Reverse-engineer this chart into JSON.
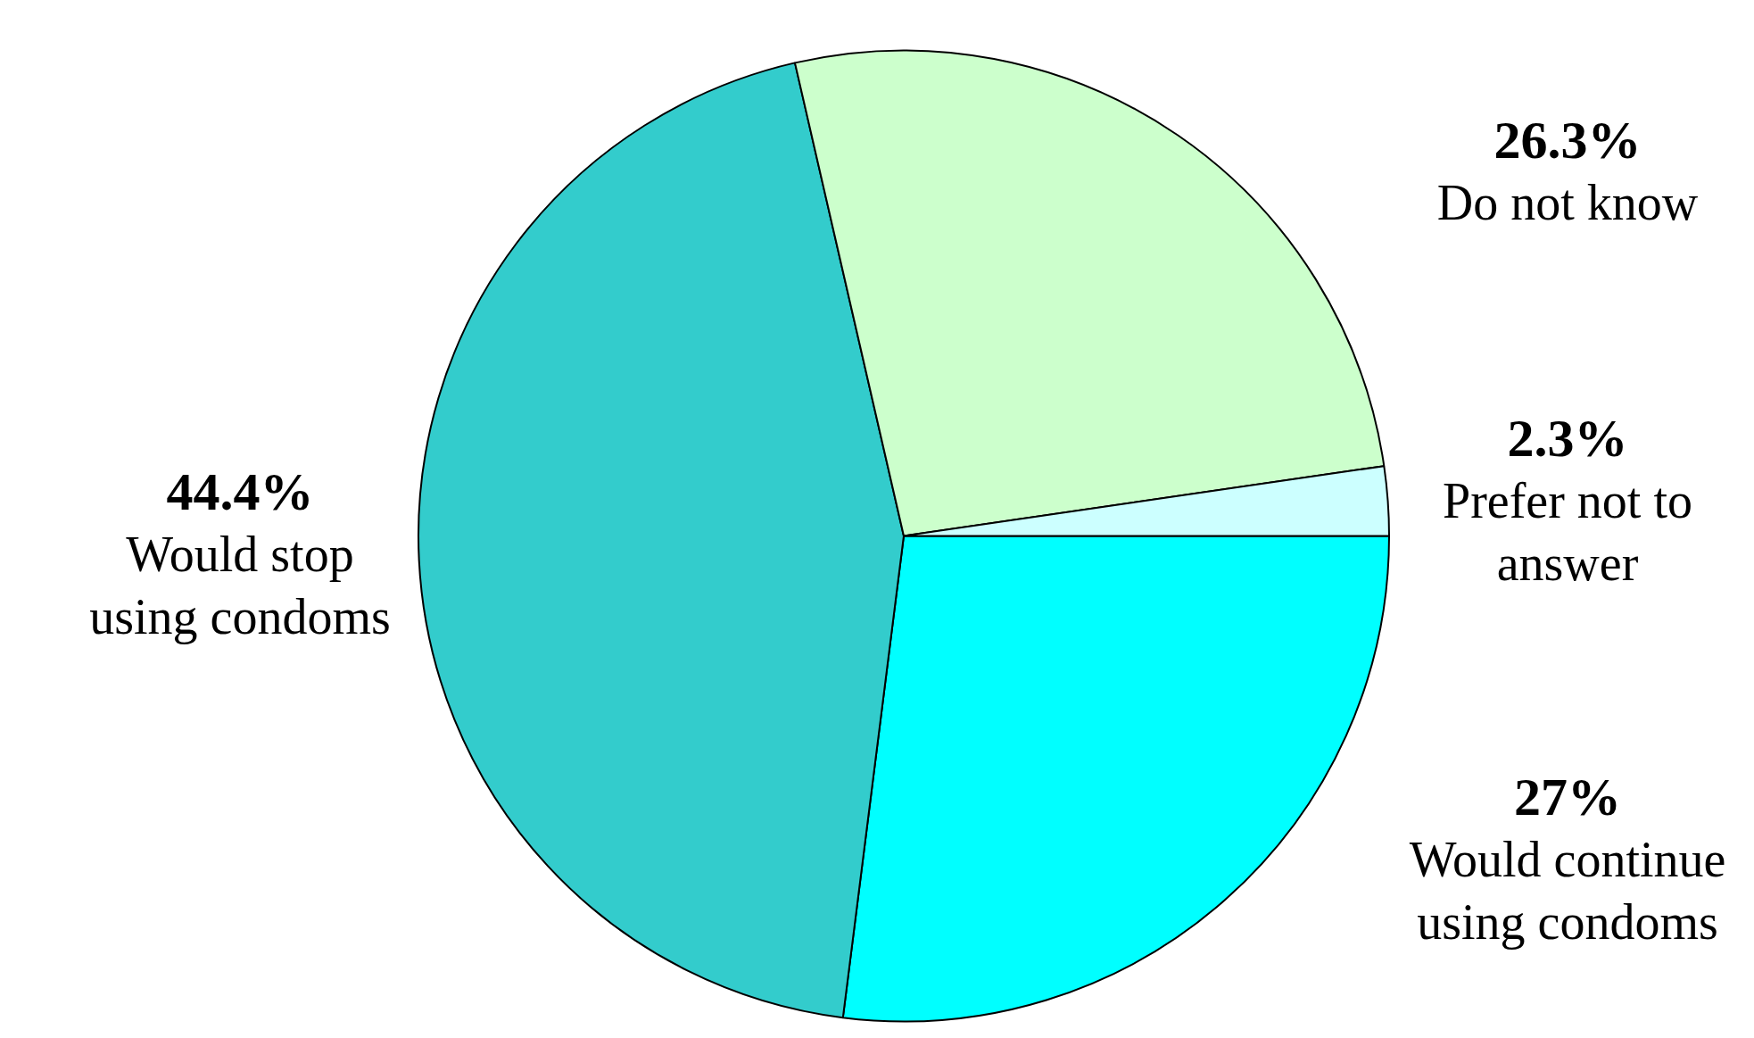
{
  "chart_data": {
    "type": "pie",
    "categories": [
      "Would continue using condoms",
      "Would stop using condoms",
      "Do not know",
      "Prefer not to answer"
    ],
    "values": [
      27,
      44.4,
      26.3,
      2.3
    ],
    "value_labels": [
      "27%",
      "44.4%",
      "26.3%",
      "2.3%"
    ],
    "colors": [
      "#00ffff",
      "#33cccc",
      "#ccffcc",
      "#ccffff"
    ],
    "legend": false
  }
}
